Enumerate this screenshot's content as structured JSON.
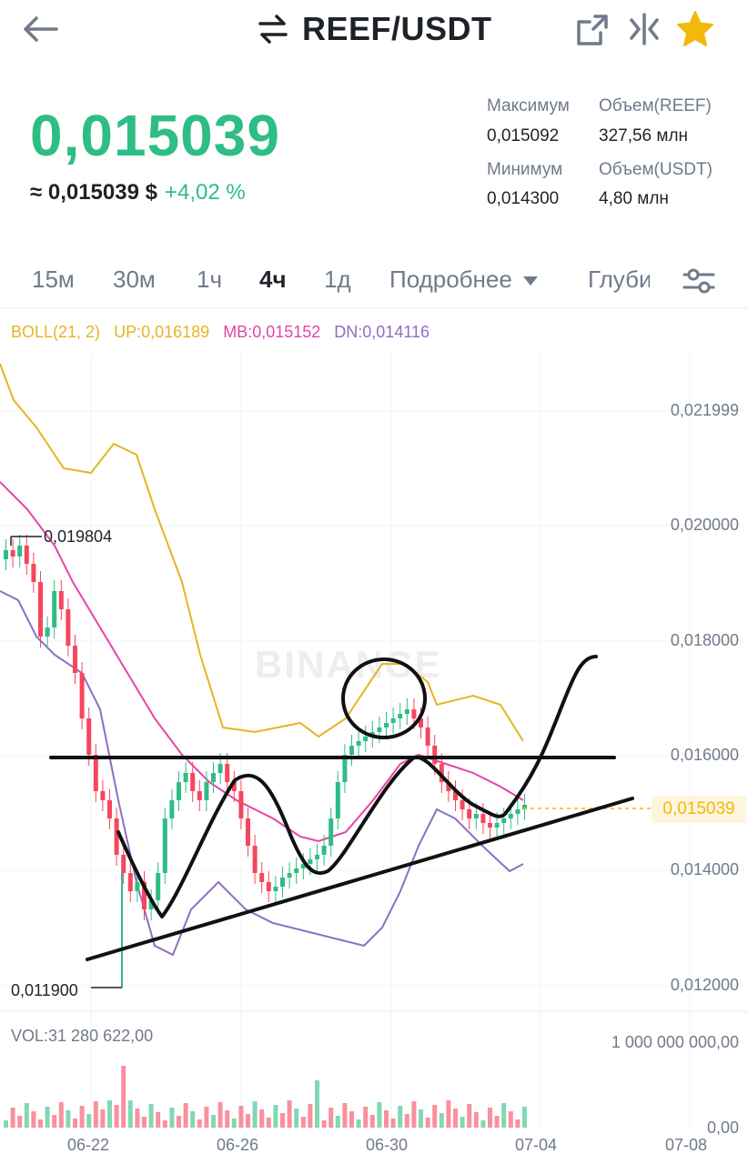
{
  "header": {
    "title": "REEF/USDT"
  },
  "price": {
    "last": "0,015039",
    "usd_approx": "≈ 0,015039 $",
    "change": "+4,02 %"
  },
  "stats": {
    "high_label": "Максимум",
    "high_value": "0,015092",
    "low_label": "Минимум",
    "low_value": "0,014300",
    "vol_base_label": "Объем(REEF)",
    "vol_base_value": "327,56 млн",
    "vol_quote_label": "Объем(USDT)",
    "vol_quote_value": "4,80 млн"
  },
  "tabs": [
    "15м",
    "30м",
    "1ч",
    "4ч",
    "1д",
    "Подробнее",
    "Глуби"
  ],
  "active_tab": "4ч",
  "indicator": {
    "name": "BOLL(21, 2)",
    "up": "UP:0,016189",
    "mb": "MB:0,015152",
    "dn": "DN:0,014116"
  },
  "y_axis": [
    "0,021999",
    "0,020000",
    "0,018000",
    "0,016000",
    "0,014000",
    "0,012000"
  ],
  "x_axis": [
    "06-22",
    "06-26",
    "06-30",
    "07-04",
    "07-08"
  ],
  "markers": {
    "high": "0,019804",
    "low": "0,011900",
    "current": "0,015039"
  },
  "volume": {
    "label": "VOL:31 280 622,00",
    "max": "1 000 000 000,00",
    "zero": "0,00"
  },
  "watermark": "BINANCE",
  "colors": {
    "up": "#2ebd85",
    "down": "#f6465d",
    "boll_up": "#e6b522",
    "boll_mb": "#e545a8",
    "boll_dn": "#8d6fc5",
    "accent": "#f0b90b"
  },
  "icons": [
    "back-arrow-icon",
    "swap-icon",
    "share-icon",
    "compare-icon",
    "star-icon",
    "settings-sliders-icon",
    "caret-down-icon"
  ]
}
